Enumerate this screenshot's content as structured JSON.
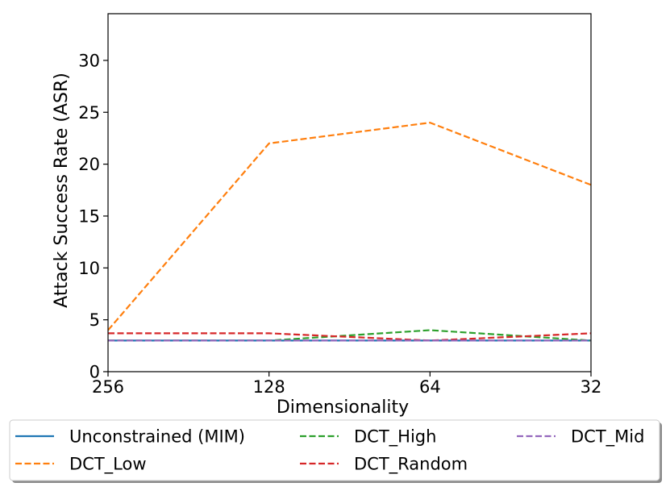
{
  "chart_data": {
    "type": "line",
    "title": "",
    "xlabel": "Dimensionality",
    "ylabel": "Attack Success Rate (ASR)",
    "categories": [
      "256",
      "128",
      "64",
      "32"
    ],
    "yticks": [
      "0",
      "5",
      "10",
      "15",
      "20",
      "25",
      "30"
    ],
    "ylim": [
      0,
      34.5
    ],
    "grid": false,
    "legend_position": "bottom",
    "series": [
      {
        "name": "Unconstrained (MIM)",
        "values": [
          3.0,
          3.0,
          3.0,
          3.0
        ],
        "color": "#1f77b4",
        "dash": "solid"
      },
      {
        "name": "DCT_Low",
        "values": [
          4.0,
          22.0,
          24.0,
          18.0
        ],
        "color": "#ff7f0e",
        "dash": "dashed"
      },
      {
        "name": "DCT_High",
        "values": [
          3.0,
          3.0,
          4.0,
          3.0
        ],
        "color": "#2ca02c",
        "dash": "dashed"
      },
      {
        "name": "DCT_Random",
        "values": [
          3.7,
          3.7,
          3.0,
          3.7
        ],
        "color": "#d62728",
        "dash": "dashed"
      },
      {
        "name": "DCT_Mid",
        "values": [
          3.0,
          3.0,
          3.0,
          3.0
        ],
        "color": "#9467bd",
        "dash": "dashed"
      }
    ]
  }
}
